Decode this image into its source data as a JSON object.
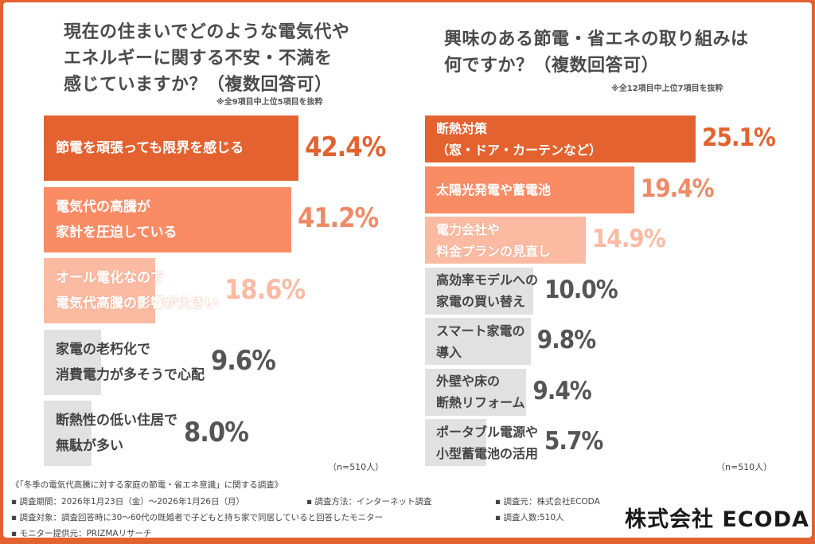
{
  "colors": {
    "frame": "#e4622f",
    "dark": "#e4622f",
    "medium": "#f98b65",
    "light": "#fbbba2",
    "gray": "#e1e1e1",
    "gray_text": "#555555"
  },
  "chart_data": [
    {
      "type": "bar",
      "orientation": "horizontal",
      "title": "現在の住まいでどのような電気代や\nエネルギーに関する不安・不満を\n感じていますか？（複数回答可）",
      "note": "※全9項目中上位5項目を抜粋",
      "n_label": "（n=510人）",
      "unit": "%",
      "categories": [
        "節電を頑張っても限界を感じる",
        "電気代の高騰が\n家計を圧迫している",
        "オール電化なので\n電気代高騰の影響が大きい",
        "家電の老朽化で\n消費電力が多そうで心配",
        "断熱性の低い住居で\n無駄が多い"
      ],
      "values": [
        42.4,
        41.2,
        18.6,
        9.6,
        8.0
      ],
      "value_labels": [
        "42.4%",
        "41.2%",
        "18.6%",
        "9.6%",
        "8.0%"
      ],
      "bar_colors": [
        "dark",
        "medium",
        "light",
        "gray",
        "gray"
      ]
    },
    {
      "type": "bar",
      "orientation": "horizontal",
      "title": "興味のある節電・省エネの取り組みは\n何ですか？（複数回答可）",
      "note": "※全12項目中上位7項目を抜粋",
      "n_label": "（n=510人）",
      "unit": "%",
      "categories": [
        "断熱対策\n（窓・ドア・カーテンなど）",
        "太陽光発電や蓄電池",
        "電力会社や\n料金プランの見直し",
        "高効率モデルへの\n家電の買い替え",
        "スマート家電の\n導入",
        "外壁や床の\n断熱リフォーム",
        "ポータブル電源や\n小型蓄電池の活用"
      ],
      "values": [
        25.1,
        19.4,
        14.9,
        10.0,
        9.8,
        9.4,
        5.7
      ],
      "value_labels": [
        "25.1%",
        "19.4%",
        "14.9%",
        "10.0%",
        "9.8%",
        "9.4%",
        "5.7%"
      ],
      "bar_colors": [
        "dark",
        "medium",
        "light",
        "gray",
        "gray",
        "gray",
        "gray"
      ]
    }
  ],
  "footer": {
    "survey_title": "《「冬季の電気代高騰に対する家庭の節電・省エネ意識」に関する調査》",
    "period": "▪ 調査期間：2026年1月23日（金）～2026年1月26日（月）",
    "method": "▪ 調査方法：インターネット調査",
    "source": "▪ 調査元：株式会社ECODA",
    "target": "▪ 調査対象：調査回答時に30～60代の既婚者で子どもと持ち家で同居していると回答したモニター",
    "count": "▪ 調査人数:510人",
    "provider": "▪ モニター提供元：PRIZMAリサーチ"
  },
  "logo": "株式会社 ECODA"
}
